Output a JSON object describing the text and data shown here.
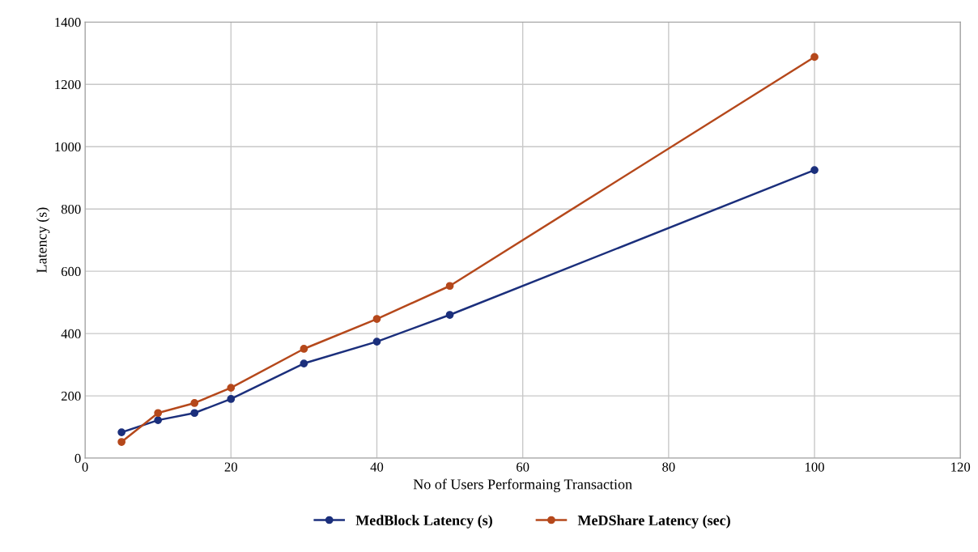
{
  "chart_data": {
    "type": "line",
    "xlabel": "No of Users Performaing Transaction",
    "ylabel": "Latency (s)",
    "x": [
      5,
      10,
      15,
      20,
      30,
      40,
      50,
      100
    ],
    "series": [
      {
        "name": "MedBlock Latency (s)",
        "color": "#1b2f7c",
        "values": [
          83,
          122,
          145,
          190,
          304,
          374,
          460,
          925
        ]
      },
      {
        "name": "MeDShare Latency (sec)",
        "color": "#b5481b",
        "values": [
          52,
          145,
          177,
          226,
          351,
          447,
          553,
          1288
        ]
      }
    ],
    "xlim": [
      0,
      120
    ],
    "xticks": [
      0,
      20,
      40,
      60,
      80,
      100,
      120
    ],
    "ylim": [
      0,
      1400
    ],
    "yticks": [
      0,
      200,
      400,
      600,
      800,
      1000,
      1200,
      1400
    ],
    "grid": true,
    "legend": "bottom",
    "marker": "circle",
    "line_style": "solid"
  }
}
